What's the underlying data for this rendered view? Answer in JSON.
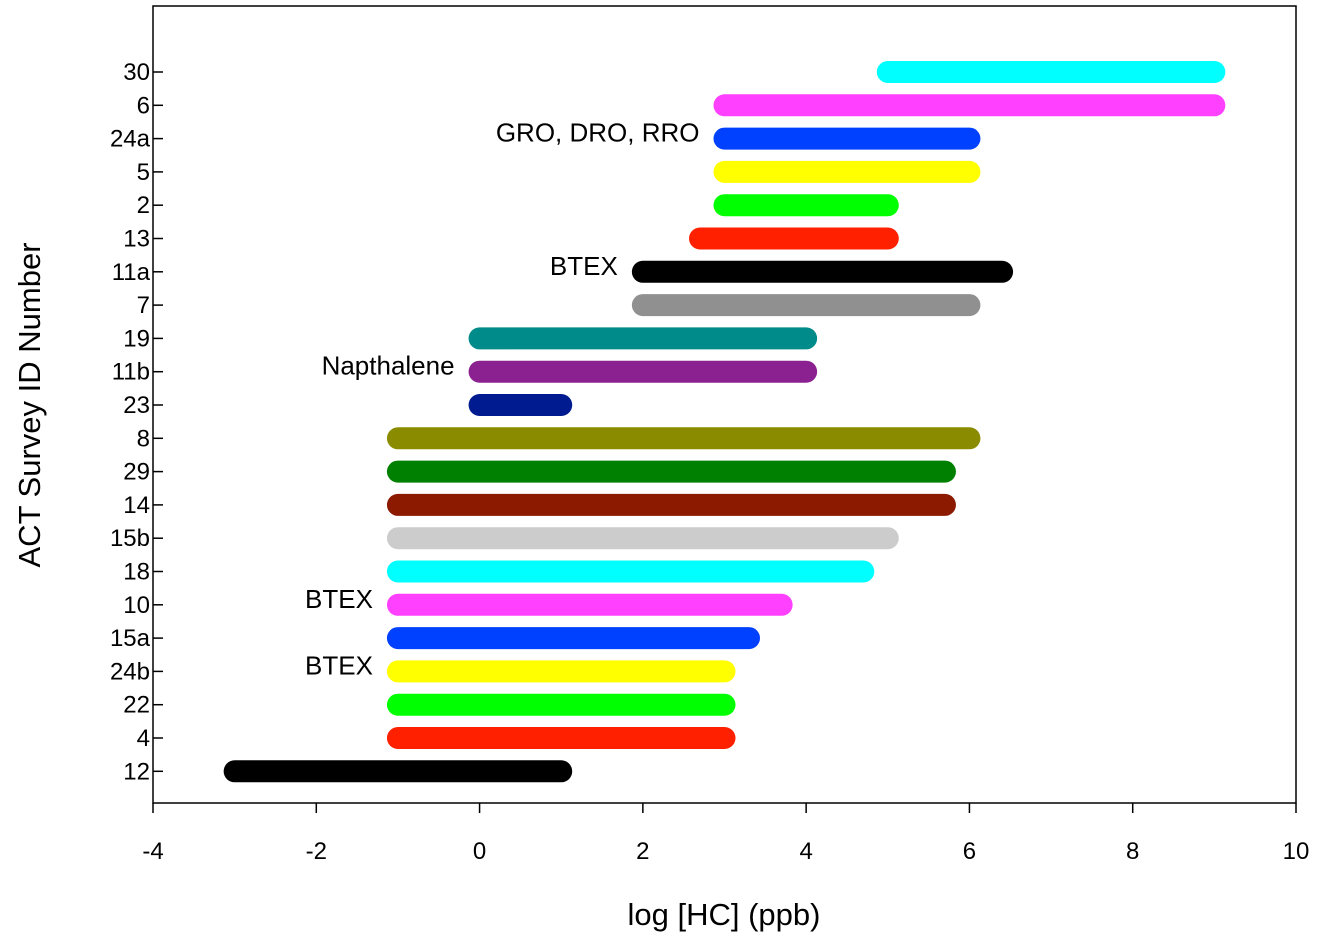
{
  "chart_data": {
    "type": "range-bar",
    "title": "",
    "xlabel": "log [HC]  (ppb)",
    "ylabel": "ACT Survey ID Number",
    "xlim": [
      -4,
      10
    ],
    "xticks": [
      "-4",
      "-2",
      "0",
      "2",
      "4",
      "6",
      "8",
      "10"
    ],
    "grid": false,
    "legend": "none",
    "bars": [
      {
        "id": "30",
        "start": 5,
        "end": 9,
        "color": "#00FFFF"
      },
      {
        "id": "6",
        "start": 3,
        "end": 9,
        "color": "#FF40FF"
      },
      {
        "id": "24a",
        "start": 3,
        "end": 6,
        "color": "#0040FF"
      },
      {
        "id": "5",
        "start": 3,
        "end": 6,
        "color": "#FFFF00"
      },
      {
        "id": "2",
        "start": 3,
        "end": 5,
        "color": "#00FF00"
      },
      {
        "id": "13",
        "start": 2.7,
        "end": 5,
        "color": "#FF2000"
      },
      {
        "id": "11a",
        "start": 2,
        "end": 6.4,
        "color": "#000000"
      },
      {
        "id": "7",
        "start": 2,
        "end": 6,
        "color": "#909090"
      },
      {
        "id": "19",
        "start": 0,
        "end": 4,
        "color": "#008B8B"
      },
      {
        "id": "11b",
        "start": 0,
        "end": 4,
        "color": "#8B2090"
      },
      {
        "id": "23",
        "start": 0,
        "end": 1,
        "color": "#001A90"
      },
      {
        "id": "8",
        "start": -1,
        "end": 6,
        "color": "#8B8B00"
      },
      {
        "id": "29",
        "start": -1,
        "end": 5.7,
        "color": "#008000"
      },
      {
        "id": "14",
        "start": -1,
        "end": 5.7,
        "color": "#8B1A00"
      },
      {
        "id": "15b",
        "start": -1,
        "end": 5,
        "color": "#CCCCCC"
      },
      {
        "id": "18",
        "start": -1,
        "end": 4.7,
        "color": "#00FFFF"
      },
      {
        "id": "10",
        "start": -1,
        "end": 3.7,
        "color": "#FF40FF"
      },
      {
        "id": "15a",
        "start": -1,
        "end": 3.3,
        "color": "#0040FF"
      },
      {
        "id": "24b",
        "start": -1,
        "end": 3,
        "color": "#FFFF00"
      },
      {
        "id": "22",
        "start": -1,
        "end": 3,
        "color": "#00FF00"
      },
      {
        "id": "4",
        "start": -1,
        "end": 3,
        "color": "#FF2000"
      },
      {
        "id": "12",
        "start": -3,
        "end": 1,
        "color": "#000000"
      }
    ],
    "annotations": [
      {
        "text": "GRO, DRO, RRO",
        "row": "24a"
      },
      {
        "text": "BTEX",
        "row": "11a"
      },
      {
        "text": "Napthalene",
        "row": "11b"
      },
      {
        "text": "BTEX",
        "row": "10"
      },
      {
        "text": "BTEX",
        "row": "24b"
      }
    ]
  }
}
